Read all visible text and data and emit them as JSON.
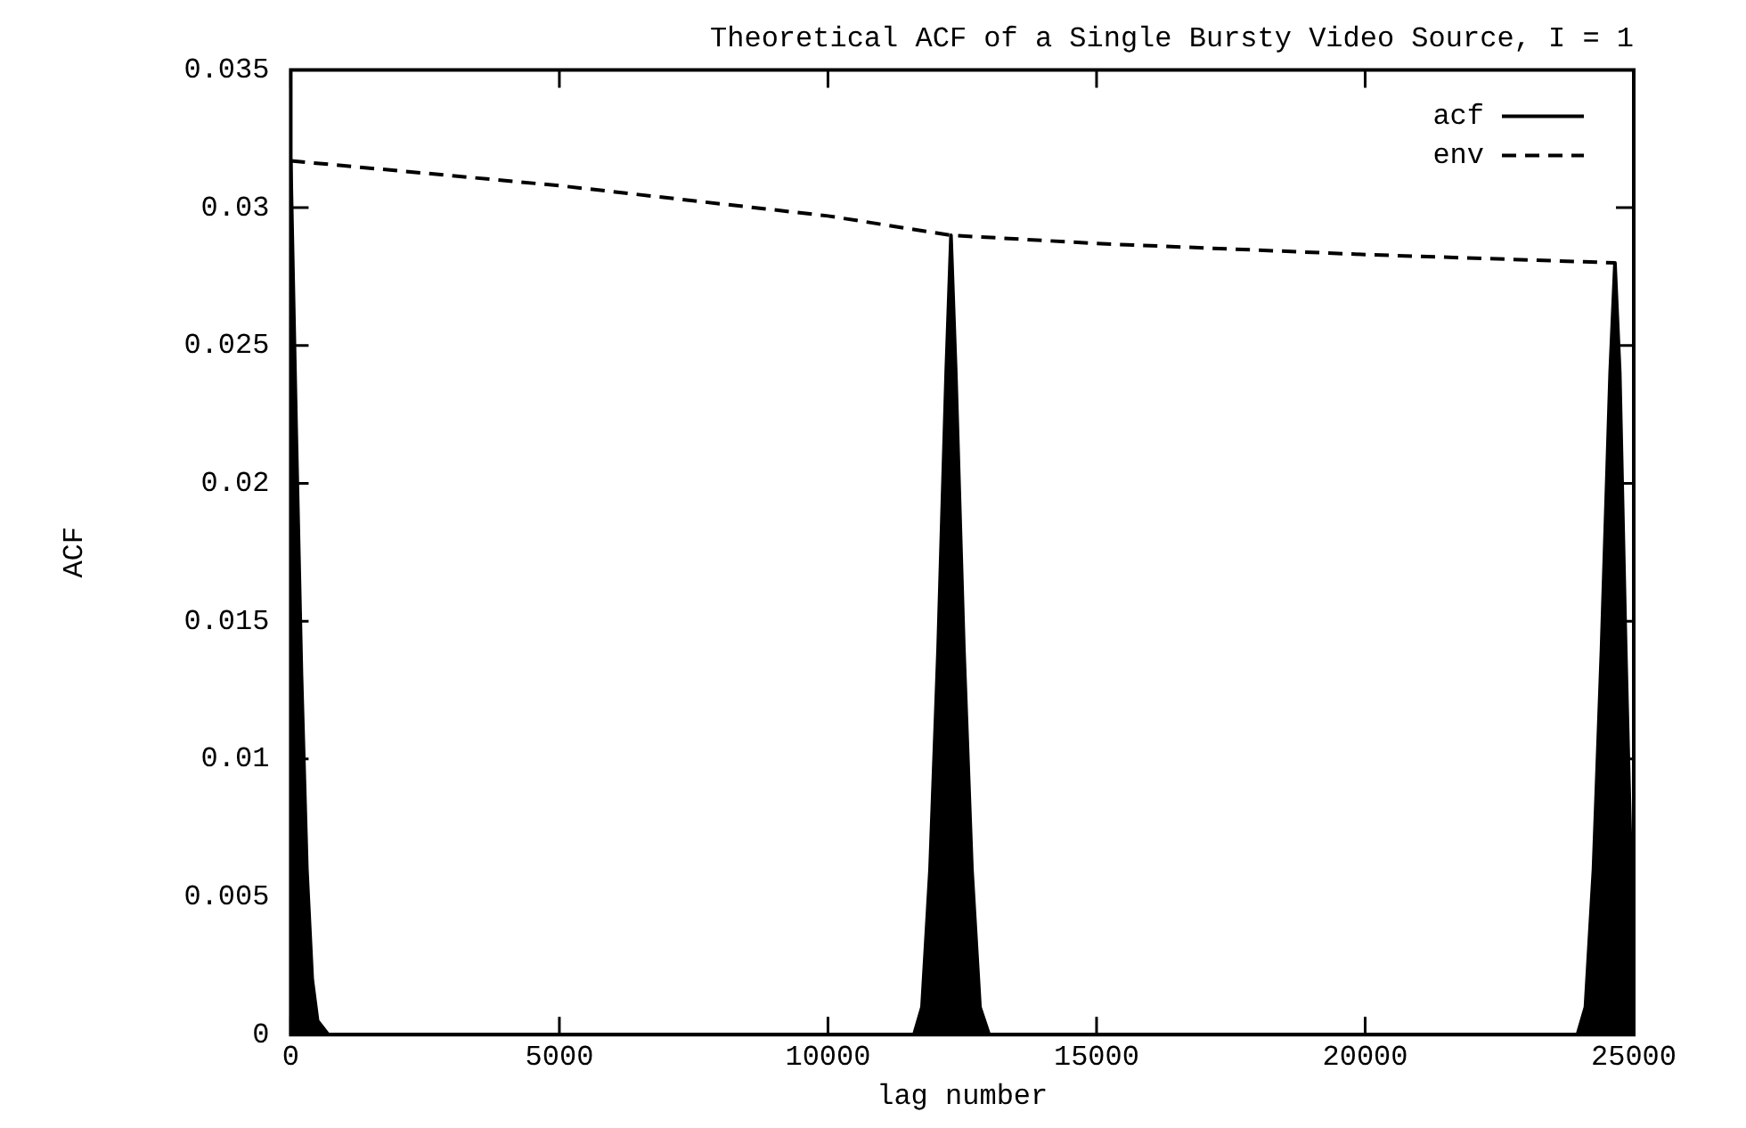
{
  "chart_data": {
    "type": "line",
    "title": "Theoretical ACF of a Single Bursty Video Source, I = 1",
    "xlabel": "lag number",
    "ylabel": "ACF",
    "xlim": [
      0,
      25000
    ],
    "xticks": [
      0,
      5000,
      10000,
      15000,
      20000,
      25000
    ],
    "ylim": [
      0,
      0.035
    ],
    "yticks": [
      0,
      0.005,
      0.01,
      0.015,
      0.02,
      0.025,
      0.03,
      0.035
    ],
    "grid": false,
    "legend": "top right",
    "marker": "none",
    "series": [
      {
        "name": "acf",
        "type": "area",
        "color": "#000000",
        "line_style": "solid",
        "x": [
          0,
          100,
          200,
          300,
          400,
          500,
          700,
          11600,
          11750,
          11900,
          12050,
          12200,
          12290,
          12380,
          12530,
          12680,
          12830,
          13000,
          23950,
          24100,
          24250,
          24400,
          24560,
          24650,
          24740,
          24850,
          24950,
          25000
        ],
        "values": [
          0.0317,
          0.022,
          0.013,
          0.006,
          0.002,
          0.0005,
          0,
          0,
          0.001,
          0.006,
          0.014,
          0.024,
          0.029,
          0.024,
          0.014,
          0.006,
          0.001,
          0,
          0,
          0.001,
          0.006,
          0.014,
          0.024,
          0.028,
          0.024,
          0.014,
          0.006,
          0.003
        ]
      },
      {
        "name": "env",
        "type": "line",
        "color": "#000000",
        "line_style": "dashed",
        "x": [
          0,
          5000,
          10000,
          12290,
          15000,
          20000,
          24650
        ],
        "values": [
          0.0317,
          0.0308,
          0.0297,
          0.029,
          0.0287,
          0.0283,
          0.028
        ]
      }
    ]
  }
}
